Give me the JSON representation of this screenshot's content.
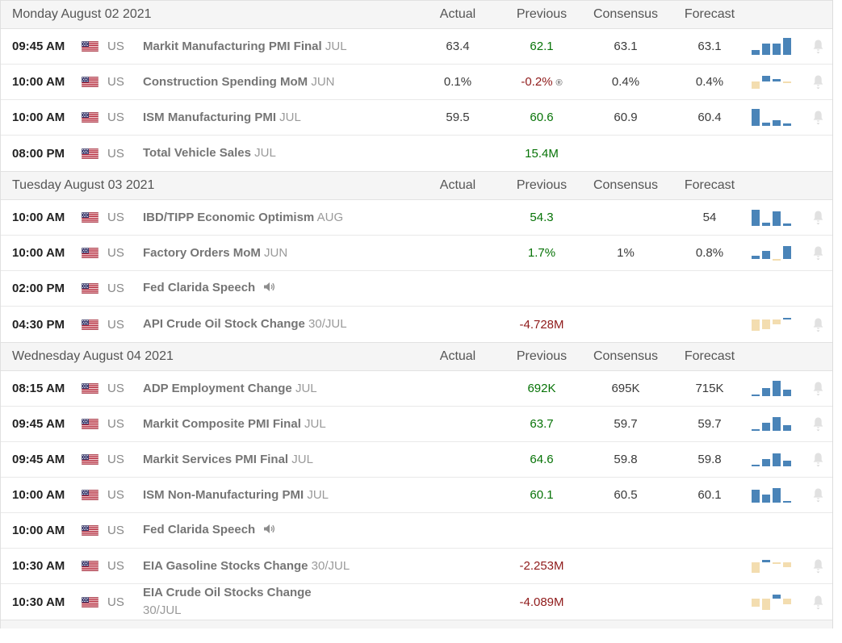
{
  "columns": {
    "actual": "Actual",
    "previous": "Previous",
    "consensus": "Consensus",
    "forecast": "Forecast"
  },
  "revised_symbol": "®",
  "colors": {
    "positive_bar": "#4a84b8",
    "negative_bar": "#f3ddb0",
    "dark": "#3a3a3a",
    "green": "#077307",
    "red": "#8f1a1a",
    "bell": "#e1e1e1"
  },
  "days": [
    {
      "date": "Monday August 02 2021",
      "rows": [
        {
          "time": "09:45 AM",
          "country": "US",
          "event": "Markit Manufacturing PMI Final",
          "ref": "JUL",
          "values": {
            "actual": {
              "t": "63.4",
              "c": "dark"
            },
            "previous": {
              "t": "62.1",
              "c": "green"
            },
            "consensus": {
              "t": "63.1",
              "c": "dark"
            },
            "forecast": {
              "t": "63.1",
              "c": "dark"
            }
          },
          "spark": [
            6,
            14,
            14,
            21
          ],
          "bell": true,
          "speech": false
        },
        {
          "time": "10:00 AM",
          "country": "US",
          "event": "Construction Spending MoM",
          "ref": "JUN",
          "values": {
            "actual": {
              "t": "0.1%",
              "c": "dark"
            },
            "previous": {
              "t": "-0.2%",
              "c": "red",
              "revised": true
            },
            "consensus": {
              "t": "0.4%",
              "c": "dark"
            },
            "forecast": {
              "t": "0.4%",
              "c": "dark"
            }
          },
          "spark": [
            -9,
            7,
            3,
            -2
          ],
          "bell": true,
          "speech": false
        },
        {
          "time": "10:00 AM",
          "country": "US",
          "event": "ISM Manufacturing PMI",
          "ref": "JUL",
          "values": {
            "actual": {
              "t": "59.5",
              "c": "dark"
            },
            "previous": {
              "t": "60.6",
              "c": "green"
            },
            "consensus": {
              "t": "60.9",
              "c": "dark"
            },
            "forecast": {
              "t": "60.4",
              "c": "dark"
            }
          },
          "spark": [
            21,
            4,
            7,
            3
          ],
          "bell": true,
          "speech": false
        },
        {
          "time": "08:00 PM",
          "country": "US",
          "event": "Total Vehicle Sales",
          "ref": "JUL",
          "values": {
            "previous": {
              "t": "15.4M",
              "c": "green"
            }
          },
          "spark": null,
          "bell": false,
          "speech": false
        }
      ]
    },
    {
      "date": "Tuesday August 03 2021",
      "rows": [
        {
          "time": "10:00 AM",
          "country": "US",
          "event": "IBD/TIPP Economic Optimism",
          "ref": "AUG",
          "values": {
            "previous": {
              "t": "54.3",
              "c": "green"
            },
            "forecast": {
              "t": "54",
              "c": "dark"
            }
          },
          "spark": [
            20,
            4,
            18,
            3
          ],
          "bell": true,
          "speech": false
        },
        {
          "time": "10:00 AM",
          "country": "US",
          "event": "Factory Orders MoM",
          "ref": "JUN",
          "values": {
            "previous": {
              "t": "1.7%",
              "c": "green"
            },
            "consensus": {
              "t": "1%",
              "c": "dark"
            },
            "forecast": {
              "t": "0.8%",
              "c": "dark"
            }
          },
          "spark": [
            4,
            10,
            -2,
            16
          ],
          "bell": true,
          "speech": false
        },
        {
          "time": "02:00 PM",
          "country": "US",
          "event": "Fed Clarida Speech",
          "ref": "",
          "values": {},
          "spark": null,
          "bell": false,
          "speech": true
        },
        {
          "time": "04:30 PM",
          "country": "US",
          "event": "API Crude Oil Stock Change",
          "ref": "30/JUL",
          "values": {
            "previous": {
              "t": "-4.728M",
              "c": "red"
            }
          },
          "spark": [
            -14,
            -12,
            -6,
            2
          ],
          "bell": true,
          "speech": false
        }
      ]
    },
    {
      "date": "Wednesday August 04 2021",
      "rows": [
        {
          "time": "08:15 AM",
          "country": "US",
          "event": "ADP Employment Change",
          "ref": "JUL",
          "values": {
            "previous": {
              "t": "692K",
              "c": "green"
            },
            "consensus": {
              "t": "695K",
              "c": "dark"
            },
            "forecast": {
              "t": "715K",
              "c": "dark"
            }
          },
          "spark": [
            2,
            10,
            19,
            8
          ],
          "bell": true,
          "speech": false
        },
        {
          "time": "09:45 AM",
          "country": "US",
          "event": "Markit Composite PMI Final",
          "ref": "JUL",
          "values": {
            "previous": {
              "t": "63.7",
              "c": "green"
            },
            "consensus": {
              "t": "59.7",
              "c": "dark"
            },
            "forecast": {
              "t": "59.7",
              "c": "dark"
            }
          },
          "spark": [
            2,
            10,
            17,
            7
          ],
          "bell": true,
          "speech": false
        },
        {
          "time": "09:45 AM",
          "country": "US",
          "event": "Markit Services PMI Final",
          "ref": "JUL",
          "values": {
            "previous": {
              "t": "64.6",
              "c": "green"
            },
            "consensus": {
              "t": "59.8",
              "c": "dark"
            },
            "forecast": {
              "t": "59.8",
              "c": "dark"
            }
          },
          "spark": [
            2,
            9,
            16,
            7
          ],
          "bell": true,
          "speech": false
        },
        {
          "time": "10:00 AM",
          "country": "US",
          "event": "ISM Non-Manufacturing PMI",
          "ref": "JUL",
          "values": {
            "previous": {
              "t": "60.1",
              "c": "green"
            },
            "consensus": {
              "t": "60.5",
              "c": "dark"
            },
            "forecast": {
              "t": "60.1",
              "c": "dark"
            }
          },
          "spark": [
            16,
            10,
            18,
            2
          ],
          "bell": true,
          "speech": false
        },
        {
          "time": "10:00 AM",
          "country": "US",
          "event": "Fed Clarida Speech",
          "ref": "",
          "values": {},
          "spark": null,
          "bell": false,
          "speech": true
        },
        {
          "time": "10:30 AM",
          "country": "US",
          "event": "EIA Gasoline Stocks Change",
          "ref": "30/JUL",
          "values": {
            "previous": {
              "t": "-2.253M",
              "c": "red"
            }
          },
          "spark": [
            -13,
            3,
            -2,
            -6
          ],
          "bell": true,
          "speech": false
        },
        {
          "time": "10:30 AM",
          "country": "US",
          "event": "EIA Crude Oil Stocks Change",
          "ref": "30/JUL",
          "ref_newline": true,
          "values": {
            "previous": {
              "t": "-4.089M",
              "c": "red"
            }
          },
          "spark": [
            -10,
            -14,
            5,
            -7
          ],
          "bell": true,
          "speech": false
        }
      ]
    }
  ]
}
